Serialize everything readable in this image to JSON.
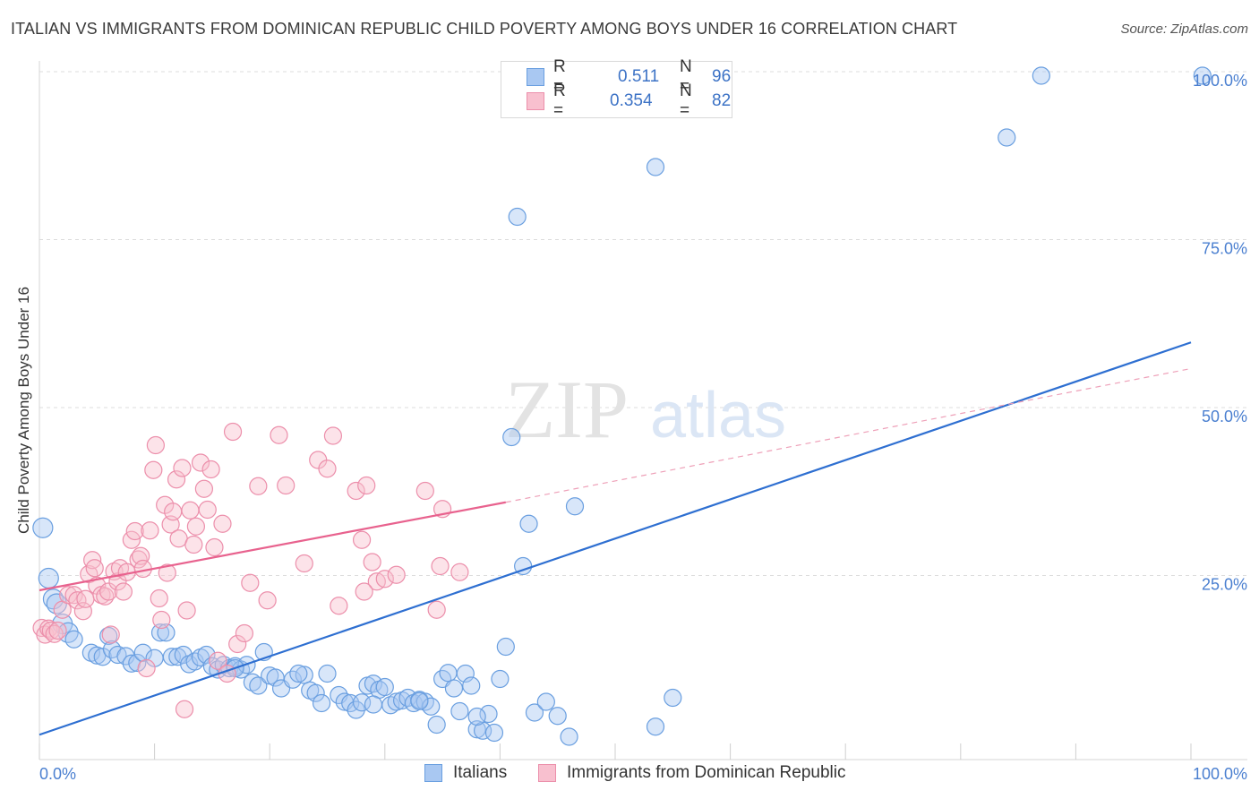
{
  "title": "ITALIAN VS IMMIGRANTS FROM DOMINICAN REPUBLIC CHILD POVERTY AMONG BOYS UNDER 16 CORRELATION CHART",
  "source": "Source: ZipAtlas.com",
  "watermark": {
    "zip": "ZIP",
    "atlas": "atlas"
  },
  "legend": {
    "r_label": "R =",
    "n_label": "N =",
    "series": [
      {
        "name": "Italians",
        "r": "0.511",
        "n": "96",
        "color": "#a9c8f2",
        "edge": "#6a9fe0"
      },
      {
        "name": "Immigrants from Dominican Republic",
        "r": "0.354",
        "n": "82",
        "color": "#f8c0cf",
        "edge": "#ec8fab"
      }
    ]
  },
  "chart_data": {
    "type": "scatter",
    "title": "ITALIAN VS IMMIGRANTS FROM DOMINICAN REPUBLIC CHILD POVERTY AMONG BOYS UNDER 16 CORRELATION CHART",
    "xlabel": "",
    "ylabel": "Child Poverty Among Boys Under 16",
    "xlim": [
      0,
      100
    ],
    "ylim": [
      0,
      100
    ],
    "x_tick_labels": [
      "0.0%",
      "100.0%"
    ],
    "y_tick_labels": [
      "25.0%",
      "50.0%",
      "75.0%",
      "100.0%"
    ],
    "y_ticks": [
      25,
      50,
      75,
      100
    ],
    "grid": true,
    "series": [
      {
        "name": "Italians",
        "color": "#6a9fe0",
        "trend": {
          "x": [
            0,
            100
          ],
          "y": [
            1.3,
            59.7
          ],
          "style": "solid"
        },
        "points": [
          [
            0.3,
            32.1
          ],
          [
            0.8,
            24.6
          ],
          [
            1.2,
            21.5
          ],
          [
            1.5,
            20.8
          ],
          [
            2.0,
            17.8
          ],
          [
            2.5,
            16.5
          ],
          [
            3.0,
            15.5
          ],
          [
            4.5,
            13.5
          ],
          [
            5.0,
            13.1
          ],
          [
            5.5,
            12.9
          ],
          [
            6.0,
            16.0
          ],
          [
            6.3,
            14.0
          ],
          [
            6.8,
            13.2
          ],
          [
            7.5,
            13.0
          ],
          [
            8.0,
            11.9
          ],
          [
            8.5,
            12.0
          ],
          [
            9.0,
            13.5
          ],
          [
            10.0,
            12.7
          ],
          [
            10.5,
            16.5
          ],
          [
            11.0,
            16.5
          ],
          [
            11.5,
            12.9
          ],
          [
            12.0,
            12.9
          ],
          [
            12.5,
            13.2
          ],
          [
            13.0,
            11.8
          ],
          [
            13.5,
            12.2
          ],
          [
            14.0,
            12.8
          ],
          [
            14.5,
            13.2
          ],
          [
            15.0,
            11.5
          ],
          [
            15.5,
            11.0
          ],
          [
            16.0,
            11.7
          ],
          [
            16.5,
            11.2
          ],
          [
            17.0,
            11.5
          ],
          [
            17.5,
            11.0
          ],
          [
            18.0,
            11.7
          ],
          [
            18.5,
            9.1
          ],
          [
            19.0,
            8.6
          ],
          [
            19.5,
            13.6
          ],
          [
            20.0,
            10.1
          ],
          [
            20.5,
            9.8
          ],
          [
            21.0,
            8.2
          ],
          [
            22.0,
            9.5
          ],
          [
            23.0,
            10.2
          ],
          [
            23.5,
            7.9
          ],
          [
            24.0,
            7.5
          ],
          [
            24.5,
            6.0
          ],
          [
            25.0,
            10.4
          ],
          [
            26.0,
            7.2
          ],
          [
            26.5,
            6.2
          ],
          [
            27.0,
            6.0
          ],
          [
            27.5,
            5.0
          ],
          [
            28.0,
            6.1
          ],
          [
            28.5,
            8.6
          ],
          [
            29.0,
            8.9
          ],
          [
            29.5,
            8.0
          ],
          [
            30.0,
            8.4
          ],
          [
            30.5,
            5.7
          ],
          [
            31.0,
            6.2
          ],
          [
            31.5,
            6.4
          ],
          [
            32.0,
            6.8
          ],
          [
            32.5,
            6.0
          ],
          [
            33.0,
            6.5
          ],
          [
            33.5,
            6.2
          ],
          [
            34.0,
            5.5
          ],
          [
            34.5,
            2.8
          ],
          [
            35.0,
            9.6
          ],
          [
            35.5,
            10.5
          ],
          [
            36.0,
            8.2
          ],
          [
            36.5,
            4.8
          ],
          [
            37.0,
            10.4
          ],
          [
            37.5,
            8.6
          ],
          [
            38.0,
            2.1
          ],
          [
            38.5,
            1.9
          ],
          [
            39.0,
            4.4
          ],
          [
            39.5,
            1.6
          ],
          [
            40.0,
            9.6
          ],
          [
            40.5,
            14.4
          ],
          [
            41.0,
            45.6
          ],
          [
            41.5,
            78.4
          ],
          [
            42.0,
            26.4
          ],
          [
            43.0,
            4.6
          ],
          [
            44.0,
            6.2
          ],
          [
            45.0,
            4.1
          ],
          [
            46.0,
            1.0
          ],
          [
            46.5,
            35.3
          ],
          [
            53.5,
            85.8
          ],
          [
            53.5,
            2.5
          ],
          [
            55.0,
            6.8
          ],
          [
            84.0,
            90.2
          ],
          [
            87.0,
            99.4
          ],
          [
            101.0,
            99.4
          ],
          [
            38.0,
            4.0
          ],
          [
            33.0,
            6.3
          ],
          [
            29.0,
            5.8
          ],
          [
            22.5,
            10.4
          ],
          [
            17.0,
            11.2
          ],
          [
            42.5,
            32.7
          ]
        ]
      },
      {
        "name": "Immigrants from Dominican Republic",
        "color": "#ec8fab",
        "trend": {
          "x": [
            0,
            40.5
          ],
          "y": [
            22.8,
            35.9
          ],
          "style": "solid"
        },
        "trend_ext": {
          "x": [
            40.5,
            100
          ],
          "y": [
            35.9,
            55.8
          ],
          "style": "dashed"
        },
        "points": [
          [
            0.2,
            17.2
          ],
          [
            0.5,
            16.2
          ],
          [
            0.8,
            17.1
          ],
          [
            1.0,
            16.8
          ],
          [
            1.3,
            16.3
          ],
          [
            1.6,
            16.8
          ],
          [
            2.0,
            19.9
          ],
          [
            2.5,
            22.1
          ],
          [
            3.0,
            22.1
          ],
          [
            3.3,
            21.3
          ],
          [
            3.8,
            19.7
          ],
          [
            4.0,
            21.5
          ],
          [
            4.3,
            25.2
          ],
          [
            4.6,
            27.3
          ],
          [
            4.8,
            26.1
          ],
          [
            5.0,
            23.5
          ],
          [
            5.4,
            22.1
          ],
          [
            5.7,
            21.9
          ],
          [
            6.0,
            22.6
          ],
          [
            6.2,
            16.2
          ],
          [
            6.5,
            25.6
          ],
          [
            6.8,
            24.1
          ],
          [
            7.0,
            26.1
          ],
          [
            7.3,
            22.6
          ],
          [
            7.6,
            25.5
          ],
          [
            8.0,
            30.3
          ],
          [
            8.3,
            31.6
          ],
          [
            8.6,
            27.4
          ],
          [
            8.8,
            27.9
          ],
          [
            9.0,
            26.0
          ],
          [
            9.3,
            11.2
          ],
          [
            9.6,
            31.7
          ],
          [
            9.9,
            40.7
          ],
          [
            10.1,
            44.4
          ],
          [
            10.4,
            21.6
          ],
          [
            10.6,
            18.4
          ],
          [
            10.9,
            35.5
          ],
          [
            11.1,
            25.4
          ],
          [
            11.4,
            32.6
          ],
          [
            11.6,
            34.5
          ],
          [
            11.9,
            39.3
          ],
          [
            12.1,
            30.5
          ],
          [
            12.4,
            41.0
          ],
          [
            12.6,
            5.1
          ],
          [
            12.8,
            19.8
          ],
          [
            13.1,
            34.7
          ],
          [
            13.4,
            29.6
          ],
          [
            13.6,
            32.3
          ],
          [
            14.0,
            41.8
          ],
          [
            14.3,
            37.9
          ],
          [
            14.6,
            34.8
          ],
          [
            14.9,
            40.8
          ],
          [
            15.2,
            29.2
          ],
          [
            15.5,
            12.3
          ],
          [
            15.9,
            32.7
          ],
          [
            16.3,
            10.4
          ],
          [
            16.8,
            46.4
          ],
          [
            17.2,
            14.8
          ],
          [
            17.8,
            16.4
          ],
          [
            18.3,
            23.9
          ],
          [
            19.0,
            38.3
          ],
          [
            19.8,
            21.3
          ],
          [
            20.8,
            45.9
          ],
          [
            21.4,
            38.4
          ],
          [
            23.0,
            26.8
          ],
          [
            24.2,
            42.2
          ],
          [
            25.0,
            40.9
          ],
          [
            25.5,
            45.8
          ],
          [
            26.0,
            20.5
          ],
          [
            27.5,
            37.6
          ],
          [
            28.0,
            30.3
          ],
          [
            28.4,
            38.4
          ],
          [
            28.9,
            27.0
          ],
          [
            29.3,
            24.1
          ],
          [
            30.0,
            24.5
          ],
          [
            31.0,
            25.1
          ],
          [
            33.5,
            37.6
          ],
          [
            34.5,
            19.9
          ],
          [
            34.8,
            26.4
          ],
          [
            35.0,
            34.9
          ],
          [
            36.5,
            25.5
          ],
          [
            28.2,
            22.6
          ]
        ]
      }
    ]
  },
  "ylabel_text": "Child Poverty Among Boys Under 16"
}
